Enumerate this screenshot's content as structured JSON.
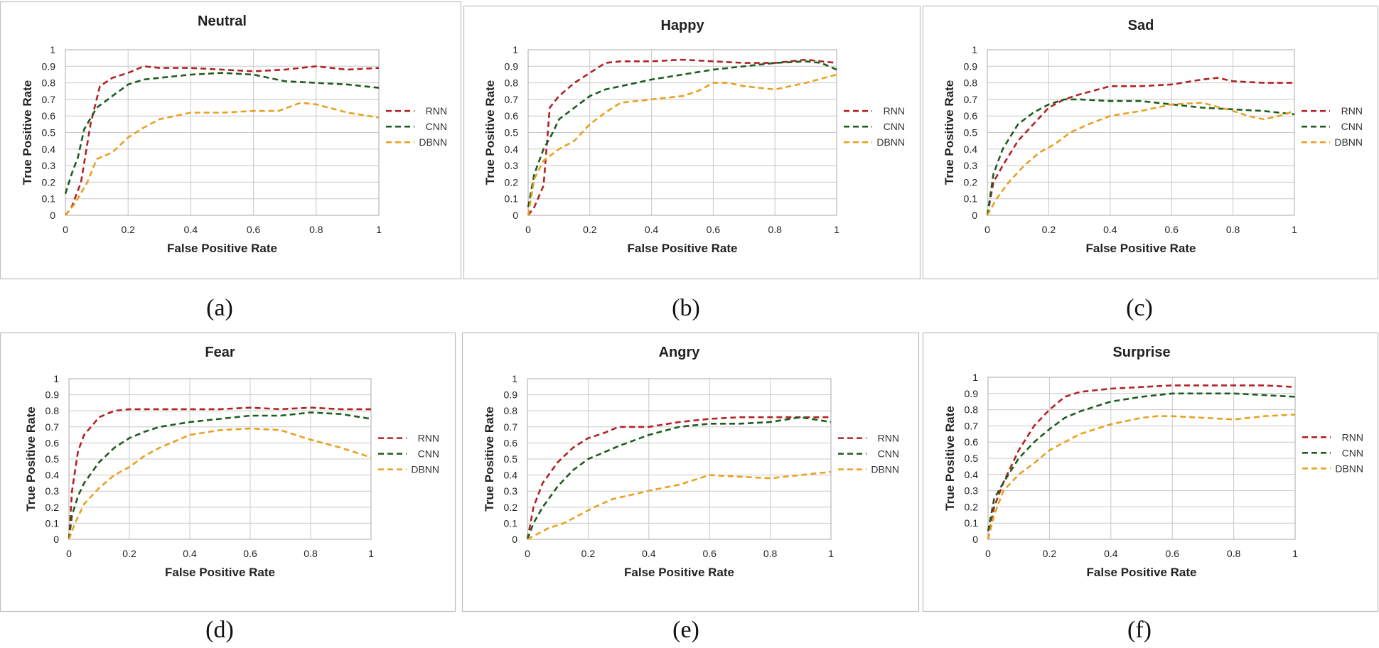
{
  "colors": {
    "RNN": "#b22222",
    "CNN": "#1e5c1e",
    "DBNN": "#e8a020",
    "grid": "#c8c8c8",
    "frame": "#bfbfbf"
  },
  "chart_data": [
    {
      "type": "line",
      "caption": "(a)",
      "title": "Neutral",
      "xlabel": "False Positive Rate",
      "ylabel": "True Positive Rate",
      "xlim": [
        0,
        1
      ],
      "ylim": [
        0,
        1
      ],
      "xticks": [
        "0",
        "0.2",
        "0.4",
        "0.6",
        "0.8",
        "1"
      ],
      "yticks": [
        "0",
        "0.1",
        "0.2",
        "0.3",
        "0.4",
        "0.5",
        "0.6",
        "0.7",
        "0.8",
        "0.9",
        "1"
      ],
      "series": [
        {
          "name": "RNN",
          "x": [
            0,
            0.02,
            0.05,
            0.08,
            0.11,
            0.15,
            0.2,
            0.25,
            0.3,
            0.4,
            0.5,
            0.6,
            0.7,
            0.8,
            0.9,
            1.0
          ],
          "y": [
            0,
            0.05,
            0.2,
            0.55,
            0.78,
            0.83,
            0.86,
            0.9,
            0.89,
            0.89,
            0.88,
            0.87,
            0.88,
            0.9,
            0.88,
            0.89
          ]
        },
        {
          "name": "CNN",
          "x": [
            0,
            0.02,
            0.04,
            0.06,
            0.1,
            0.15,
            0.2,
            0.25,
            0.3,
            0.4,
            0.5,
            0.6,
            0.7,
            0.8,
            0.9,
            1.0
          ],
          "y": [
            0.13,
            0.25,
            0.35,
            0.52,
            0.65,
            0.72,
            0.79,
            0.82,
            0.83,
            0.85,
            0.86,
            0.85,
            0.81,
            0.8,
            0.79,
            0.77
          ]
        },
        {
          "name": "DBNN",
          "x": [
            0,
            0.03,
            0.07,
            0.1,
            0.15,
            0.2,
            0.25,
            0.3,
            0.4,
            0.5,
            0.6,
            0.68,
            0.75,
            0.8,
            0.9,
            1.0
          ],
          "y": [
            0,
            0.07,
            0.2,
            0.34,
            0.38,
            0.47,
            0.53,
            0.58,
            0.62,
            0.62,
            0.63,
            0.63,
            0.68,
            0.67,
            0.62,
            0.59
          ]
        }
      ]
    },
    {
      "type": "line",
      "caption": "(b)",
      "title": "Happy",
      "xlabel": "False Positive Rate",
      "ylabel": "True Positive Rate",
      "xlim": [
        0,
        1
      ],
      "ylim": [
        0,
        1
      ],
      "xticks": [
        "0",
        "0.2",
        "0.4",
        "0.6",
        "0.8",
        "1"
      ],
      "yticks": [
        "0",
        "0.1",
        "0.2",
        "0.3",
        "0.4",
        "0.5",
        "0.6",
        "0.7",
        "0.8",
        "0.9",
        "1"
      ],
      "series": [
        {
          "name": "RNN",
          "x": [
            0,
            0.02,
            0.05,
            0.07,
            0.1,
            0.15,
            0.2,
            0.25,
            0.3,
            0.4,
            0.5,
            0.6,
            0.7,
            0.8,
            0.9,
            1.0
          ],
          "y": [
            0,
            0.05,
            0.18,
            0.65,
            0.72,
            0.8,
            0.86,
            0.92,
            0.93,
            0.93,
            0.94,
            0.93,
            0.92,
            0.92,
            0.94,
            0.92
          ]
        },
        {
          "name": "CNN",
          "x": [
            0,
            0.02,
            0.05,
            0.08,
            0.1,
            0.15,
            0.2,
            0.25,
            0.3,
            0.4,
            0.5,
            0.6,
            0.7,
            0.8,
            0.9,
            0.95,
            1.0
          ],
          "y": [
            0.05,
            0.25,
            0.4,
            0.5,
            0.58,
            0.65,
            0.72,
            0.76,
            0.78,
            0.82,
            0.85,
            0.88,
            0.9,
            0.92,
            0.93,
            0.92,
            0.88
          ]
        },
        {
          "name": "DBNN",
          "x": [
            0,
            0.02,
            0.05,
            0.1,
            0.15,
            0.2,
            0.25,
            0.3,
            0.4,
            0.5,
            0.55,
            0.6,
            0.65,
            0.7,
            0.8,
            0.9,
            1.0
          ],
          "y": [
            0,
            0.22,
            0.33,
            0.4,
            0.45,
            0.55,
            0.62,
            0.68,
            0.7,
            0.72,
            0.75,
            0.8,
            0.8,
            0.78,
            0.76,
            0.8,
            0.85
          ]
        }
      ]
    },
    {
      "type": "line",
      "caption": "(c)",
      "title": "Sad",
      "xlabel": "False Positive Rate",
      "ylabel": "True Positive Rate",
      "xlim": [
        0,
        1
      ],
      "ylim": [
        0,
        1
      ],
      "xticks": [
        "0",
        "0.2",
        "0.4",
        "0.6",
        "0.8",
        "1"
      ],
      "yticks": [
        "0",
        "0.1",
        "0.2",
        "0.3",
        "0.4",
        "0.5",
        "0.6",
        "0.7",
        "0.8",
        "0.9",
        "1"
      ],
      "series": [
        {
          "name": "RNN",
          "x": [
            0,
            0.02,
            0.05,
            0.1,
            0.15,
            0.2,
            0.25,
            0.3,
            0.4,
            0.5,
            0.6,
            0.7,
            0.75,
            0.8,
            0.9,
            1.0
          ],
          "y": [
            0,
            0.2,
            0.3,
            0.45,
            0.55,
            0.65,
            0.7,
            0.73,
            0.78,
            0.78,
            0.79,
            0.82,
            0.83,
            0.81,
            0.8,
            0.8
          ]
        },
        {
          "name": "CNN",
          "x": [
            0,
            0.02,
            0.05,
            0.1,
            0.15,
            0.2,
            0.25,
            0.3,
            0.4,
            0.5,
            0.6,
            0.7,
            0.8,
            0.9,
            1.0
          ],
          "y": [
            0,
            0.25,
            0.4,
            0.55,
            0.62,
            0.67,
            0.7,
            0.7,
            0.69,
            0.69,
            0.67,
            0.65,
            0.64,
            0.63,
            0.61
          ]
        },
        {
          "name": "DBNN",
          "x": [
            0,
            0.03,
            0.07,
            0.12,
            0.17,
            0.22,
            0.27,
            0.33,
            0.4,
            0.5,
            0.6,
            0.7,
            0.8,
            0.85,
            0.9,
            0.95,
            1.0
          ],
          "y": [
            0,
            0.1,
            0.2,
            0.3,
            0.38,
            0.43,
            0.5,
            0.55,
            0.6,
            0.63,
            0.67,
            0.68,
            0.63,
            0.6,
            0.58,
            0.6,
            0.63
          ]
        }
      ]
    },
    {
      "type": "line",
      "caption": "(d)",
      "title": "Fear",
      "xlabel": "False Positive Rate",
      "ylabel": "True Positive Rate",
      "xlim": [
        0,
        1
      ],
      "ylim": [
        0,
        1
      ],
      "xticks": [
        "0",
        "0.2",
        "0.4",
        "0.6",
        "0.8",
        "1"
      ],
      "yticks": [
        "0",
        "0.1",
        "0.2",
        "0.3",
        "0.4",
        "0.5",
        "0.6",
        "0.7",
        "0.8",
        "0.9",
        "1"
      ],
      "series": [
        {
          "name": "RNN",
          "x": [
            0,
            0.01,
            0.03,
            0.05,
            0.1,
            0.15,
            0.2,
            0.3,
            0.4,
            0.5,
            0.6,
            0.7,
            0.8,
            0.9,
            1.0
          ],
          "y": [
            0,
            0.3,
            0.55,
            0.65,
            0.76,
            0.8,
            0.81,
            0.81,
            0.81,
            0.81,
            0.82,
            0.81,
            0.82,
            0.81,
            0.81
          ]
        },
        {
          "name": "CNN",
          "x": [
            0,
            0.01,
            0.03,
            0.05,
            0.1,
            0.15,
            0.2,
            0.25,
            0.3,
            0.4,
            0.5,
            0.6,
            0.7,
            0.8,
            0.9,
            1.0
          ],
          "y": [
            0,
            0.15,
            0.27,
            0.35,
            0.48,
            0.57,
            0.63,
            0.67,
            0.7,
            0.73,
            0.75,
            0.77,
            0.77,
            0.79,
            0.78,
            0.75
          ]
        },
        {
          "name": "DBNN",
          "x": [
            0,
            0.02,
            0.05,
            0.1,
            0.15,
            0.2,
            0.25,
            0.3,
            0.4,
            0.5,
            0.6,
            0.7,
            0.8,
            0.9,
            1.0
          ],
          "y": [
            0,
            0.1,
            0.22,
            0.32,
            0.4,
            0.45,
            0.52,
            0.57,
            0.65,
            0.68,
            0.69,
            0.68,
            0.62,
            0.57,
            0.51
          ]
        }
      ]
    },
    {
      "type": "line",
      "caption": "(e)",
      "title": "Angry",
      "xlabel": "False Positive Rate",
      "ylabel": "True Positive Rate",
      "xlim": [
        0,
        1
      ],
      "ylim": [
        0,
        1
      ],
      "xticks": [
        "0",
        "0.2",
        "0.4",
        "0.6",
        "0.8",
        "1"
      ],
      "yticks": [
        "0",
        "0.1",
        "0.2",
        "0.3",
        "0.4",
        "0.5",
        "0.6",
        "0.7",
        "0.8",
        "0.9",
        "1"
      ],
      "series": [
        {
          "name": "RNN",
          "x": [
            0,
            0.02,
            0.05,
            0.1,
            0.15,
            0.2,
            0.25,
            0.3,
            0.4,
            0.5,
            0.6,
            0.7,
            0.8,
            0.9,
            1.0
          ],
          "y": [
            0,
            0.2,
            0.35,
            0.48,
            0.57,
            0.63,
            0.66,
            0.7,
            0.7,
            0.73,
            0.75,
            0.76,
            0.76,
            0.76,
            0.76
          ]
        },
        {
          "name": "CNN",
          "x": [
            0,
            0.02,
            0.05,
            0.1,
            0.15,
            0.2,
            0.25,
            0.3,
            0.4,
            0.5,
            0.6,
            0.7,
            0.8,
            0.9,
            1.0
          ],
          "y": [
            0,
            0.1,
            0.2,
            0.33,
            0.43,
            0.5,
            0.54,
            0.58,
            0.65,
            0.7,
            0.72,
            0.72,
            0.73,
            0.76,
            0.73
          ]
        },
        {
          "name": "DBNN",
          "x": [
            0,
            0.03,
            0.07,
            0.12,
            0.17,
            0.22,
            0.28,
            0.35,
            0.42,
            0.5,
            0.55,
            0.6,
            0.7,
            0.8,
            0.9,
            1.0
          ],
          "y": [
            0,
            0.03,
            0.07,
            0.1,
            0.15,
            0.2,
            0.25,
            0.28,
            0.31,
            0.34,
            0.37,
            0.4,
            0.39,
            0.38,
            0.4,
            0.42
          ]
        }
      ]
    },
    {
      "type": "line",
      "caption": "(f)",
      "title": "Surprise",
      "xlabel": "False Positive Rate",
      "ylabel": "True Positive Rate",
      "xlim": [
        0,
        1
      ],
      "ylim": [
        0,
        1
      ],
      "xticks": [
        "0",
        "0.2",
        "0.4",
        "0.6",
        "0.8",
        "1"
      ],
      "yticks": [
        "0",
        "0.1",
        "0.2",
        "0.3",
        "0.4",
        "0.5",
        "0.6",
        "0.7",
        "0.8",
        "0.9",
        "1"
      ],
      "series": [
        {
          "name": "RNN",
          "x": [
            0,
            0.02,
            0.05,
            0.1,
            0.15,
            0.2,
            0.25,
            0.3,
            0.4,
            0.5,
            0.6,
            0.7,
            0.8,
            0.9,
            1.0
          ],
          "y": [
            0,
            0.2,
            0.35,
            0.55,
            0.7,
            0.8,
            0.88,
            0.91,
            0.93,
            0.94,
            0.95,
            0.95,
            0.95,
            0.95,
            0.94
          ]
        },
        {
          "name": "CNN",
          "x": [
            0,
            0.02,
            0.05,
            0.1,
            0.15,
            0.2,
            0.25,
            0.3,
            0.4,
            0.5,
            0.6,
            0.7,
            0.8,
            0.9,
            1.0
          ],
          "y": [
            0.05,
            0.25,
            0.35,
            0.5,
            0.6,
            0.68,
            0.75,
            0.79,
            0.85,
            0.88,
            0.9,
            0.9,
            0.9,
            0.89,
            0.88
          ]
        },
        {
          "name": "DBNN",
          "x": [
            0,
            0.02,
            0.05,
            0.1,
            0.15,
            0.2,
            0.25,
            0.3,
            0.4,
            0.5,
            0.55,
            0.6,
            0.7,
            0.8,
            0.9,
            1.0
          ],
          "y": [
            0,
            0.15,
            0.3,
            0.4,
            0.47,
            0.55,
            0.6,
            0.65,
            0.71,
            0.75,
            0.76,
            0.76,
            0.75,
            0.74,
            0.76,
            0.77
          ]
        }
      ]
    }
  ]
}
